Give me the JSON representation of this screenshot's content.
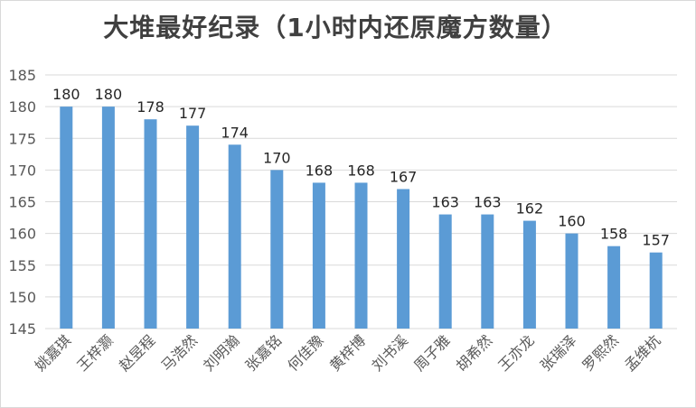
{
  "chart_data": {
    "type": "bar",
    "title": "大堆最好纪录（1小时内还原魔方数量）",
    "categories": [
      "姚嘉琪",
      "王梓灏",
      "赵昱程",
      "马浩然",
      "刘明瀚",
      "张嘉铭",
      "何佳豫",
      "黄梓博",
      "刘书溪",
      "周子雅",
      "胡希然",
      "王亦龙",
      "张瑞泽",
      "罗熙然",
      "孟维杭"
    ],
    "values": [
      180,
      180,
      178,
      177,
      174,
      170,
      168,
      168,
      167,
      163,
      163,
      162,
      160,
      158,
      157
    ],
    "ylim": [
      145,
      185
    ],
    "yticks": [
      "145",
      "150",
      "155",
      "160",
      "165",
      "170",
      "175",
      "180",
      "185"
    ],
    "grid": true,
    "legend": "none",
    "bar_color": "#5b9bd5"
  }
}
